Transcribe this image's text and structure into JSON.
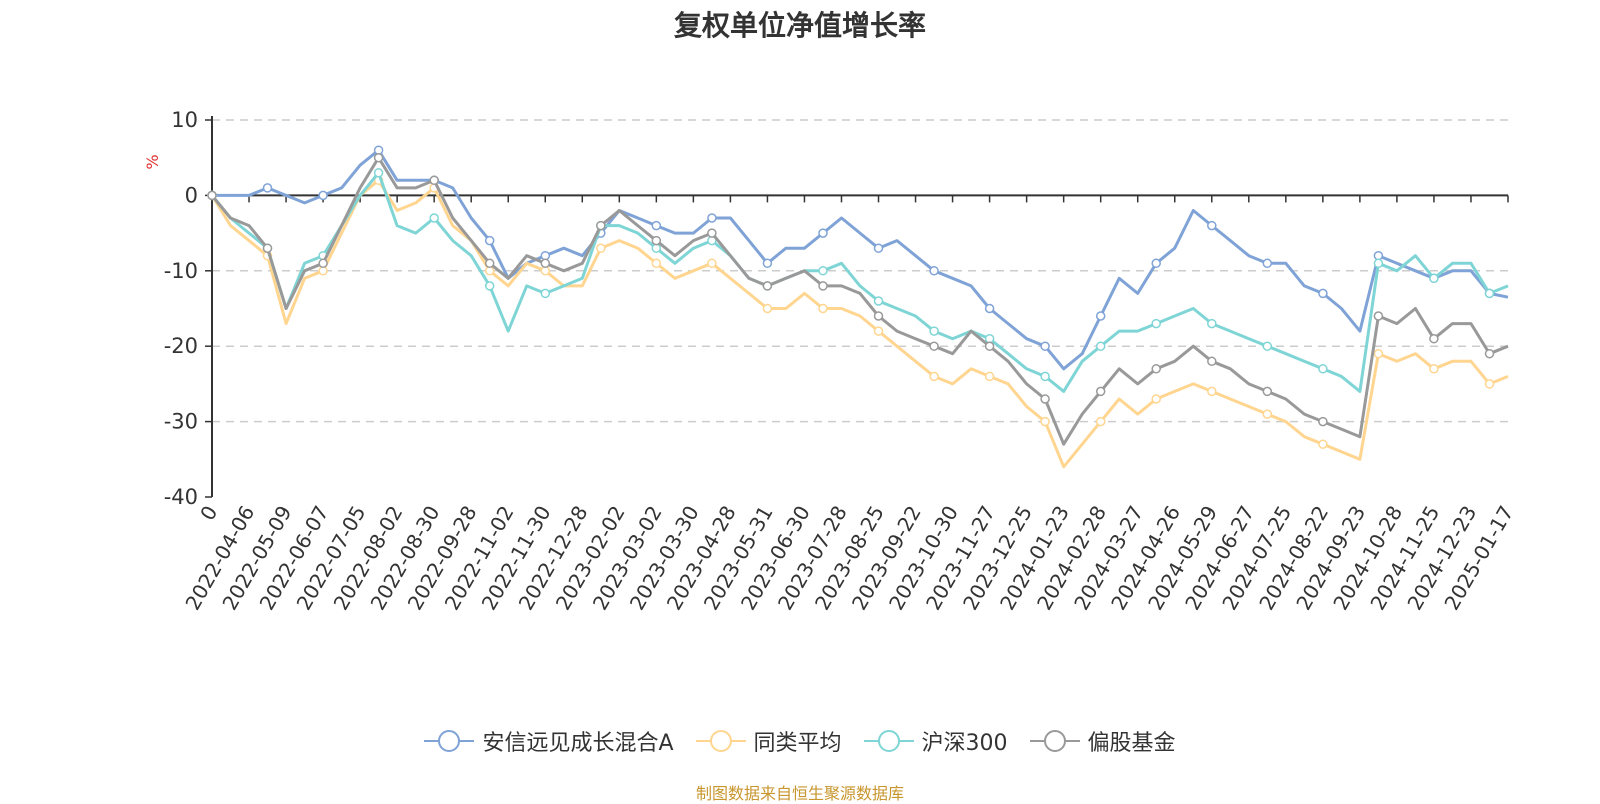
{
  "chart_data": {
    "type": "line",
    "title": "复权单位净值增长率",
    "y_unit": "%",
    "ylim": [
      -40,
      10
    ],
    "y_ticks": [
      10,
      0,
      -10,
      -20,
      -30,
      -40
    ],
    "grid": "dashed horizontal",
    "legend_position": "bottom",
    "x_tick_labels": [
      "0",
      "2022-04-06",
      "2022-05-09",
      "2022-06-07",
      "2022-07-05",
      "2022-08-02",
      "2022-08-30",
      "2022-09-28",
      "2022-11-02",
      "2022-11-30",
      "2022-12-28",
      "2023-02-02",
      "2023-03-02",
      "2023-03-30",
      "2023-04-28",
      "2023-05-31",
      "2023-06-30",
      "2023-07-28",
      "2023-08-25",
      "2023-09-22",
      "2023-10-30",
      "2023-11-27",
      "2023-12-25",
      "2024-01-23",
      "2024-02-28",
      "2024-03-27",
      "2024-04-26",
      "2024-05-29",
      "2024-06-27",
      "2024-07-25",
      "2024-08-22",
      "2024-09-23",
      "2024-10-28",
      "2024-11-25",
      "2024-12-23",
      "2025-01-17"
    ],
    "x": [
      "2022-03-07",
      "2022-03-21",
      "2022-04-06",
      "2022-04-20",
      "2022-05-09",
      "2022-05-23",
      "2022-06-07",
      "2022-06-21",
      "2022-07-05",
      "2022-07-19",
      "2022-08-02",
      "2022-08-16",
      "2022-08-30",
      "2022-09-13",
      "2022-09-28",
      "2022-10-19",
      "2022-11-02",
      "2022-11-16",
      "2022-11-30",
      "2022-12-14",
      "2022-12-28",
      "2023-01-12",
      "2023-02-02",
      "2023-02-16",
      "2023-03-02",
      "2023-03-16",
      "2023-03-30",
      "2023-04-14",
      "2023-04-28",
      "2023-05-16",
      "2023-05-31",
      "2023-06-14",
      "2023-06-30",
      "2023-07-14",
      "2023-07-28",
      "2023-08-11",
      "2023-08-25",
      "2023-09-08",
      "2023-09-22",
      "2023-10-16",
      "2023-10-30",
      "2023-11-13",
      "2023-11-27",
      "2023-12-11",
      "2023-12-25",
      "2024-01-09",
      "2024-01-23",
      "2024-02-06",
      "2024-02-28",
      "2024-03-13",
      "2024-03-27",
      "2024-04-11",
      "2024-04-26",
      "2024-05-15",
      "2024-05-29",
      "2024-06-12",
      "2024-06-27",
      "2024-07-11",
      "2024-07-25",
      "2024-08-08",
      "2024-08-22",
      "2024-09-05",
      "2024-09-23",
      "2024-10-14",
      "2024-10-28",
      "2024-11-11",
      "2024-11-25",
      "2024-12-09",
      "2024-12-23",
      "2025-01-06",
      "2025-01-17"
    ],
    "series": [
      {
        "name": "安信远见成长混合A",
        "color": "#7fa3d6",
        "values": [
          0,
          0,
          0,
          1,
          0,
          -1,
          0,
          1,
          4,
          6,
          2,
          2,
          2,
          1,
          -3,
          -6,
          -11,
          -9,
          -8,
          -7,
          -8,
          -5,
          -2,
          -3,
          -4,
          -5,
          -5,
          -3,
          -3,
          -6,
          -9,
          -7,
          -7,
          -5,
          -3,
          -5,
          -7,
          -6,
          -8,
          -10,
          -11,
          -12,
          -15,
          -17,
          -19,
          -20,
          -23,
          -21,
          -16,
          -11,
          -13,
          -9,
          -7,
          -2,
          -4,
          -6,
          -8,
          -9,
          -9,
          -12,
          -13,
          -15,
          -18,
          -8,
          -9,
          -10,
          -11,
          -10,
          -10,
          -13,
          -13.5
        ]
      },
      {
        "name": "同类平均",
        "color": "#ffd590",
        "values": [
          0,
          -4,
          -6,
          -8,
          -17,
          -11,
          -10,
          -5,
          0,
          2,
          -2,
          -1,
          1,
          -4,
          -6,
          -10,
          -12,
          -9,
          -10,
          -12,
          -12,
          -7,
          -6,
          -7,
          -9,
          -11,
          -10,
          -9,
          -11,
          -13,
          -15,
          -15,
          -13,
          -15,
          -15,
          -16,
          -18,
          -20,
          -22,
          -24,
          -25,
          -23,
          -24,
          -25,
          -28,
          -30,
          -36,
          -33,
          -30,
          -27,
          -29,
          -27,
          -26,
          -25,
          -26,
          -27,
          -28,
          -29,
          -30,
          -32,
          -33,
          -34,
          -35,
          -21,
          -22,
          -21,
          -23,
          -22,
          -22,
          -25,
          -24
        ]
      },
      {
        "name": "沪深300",
        "color": "#7fd5d5",
        "values": [
          0,
          -3,
          -5,
          -7,
          -15,
          -9,
          -8,
          -4,
          0,
          3,
          -4,
          -5,
          -3,
          -6,
          -8,
          -12,
          -18,
          -12,
          -13,
          -12,
          -11,
          -4,
          -4,
          -5,
          -7,
          -9,
          -7,
          -6,
          -8,
          -11,
          -12,
          -11,
          -10,
          -10,
          -9,
          -12,
          -14,
          -15,
          -16,
          -18,
          -19,
          -18,
          -19,
          -21,
          -23,
          -24,
          -26,
          -22,
          -20,
          -18,
          -18,
          -17,
          -16,
          -15,
          -17,
          -18,
          -19,
          -20,
          -21,
          -22,
          -23,
          -24,
          -26,
          -9,
          -10,
          -8,
          -11,
          -9,
          -9,
          -13,
          -12
        ]
      },
      {
        "name": "偏股基金",
        "color": "#999999",
        "values": [
          0,
          -3,
          -4,
          -7,
          -15,
          -10,
          -9,
          -4,
          1,
          5,
          1,
          1,
          2,
          -3,
          -6,
          -9,
          -11,
          -8,
          -9,
          -10,
          -9,
          -4,
          -2,
          -4,
          -6,
          -8,
          -6,
          -5,
          -8,
          -11,
          -12,
          -11,
          -10,
          -12,
          -12,
          -13,
          -16,
          -18,
          -19,
          -20,
          -21,
          -18,
          -20,
          -22,
          -25,
          -27,
          -33,
          -29,
          -26,
          -23,
          -25,
          -23,
          -22,
          -20,
          -22,
          -23,
          -25,
          -26,
          -27,
          -29,
          -30,
          -31,
          -32,
          -16,
          -17,
          -15,
          -19,
          -17,
          -17,
          -21,
          -20
        ]
      }
    ]
  },
  "legend": [
    {
      "label": "安信远见成长混合A",
      "color": "#7fa3d6"
    },
    {
      "label": "同类平均",
      "color": "#ffd590"
    },
    {
      "label": "沪深300",
      "color": "#7fd5d5"
    },
    {
      "label": "偏股基金",
      "color": "#999999"
    }
  ],
  "footer": {
    "source": "制图数据来自恒生聚源数据库"
  }
}
